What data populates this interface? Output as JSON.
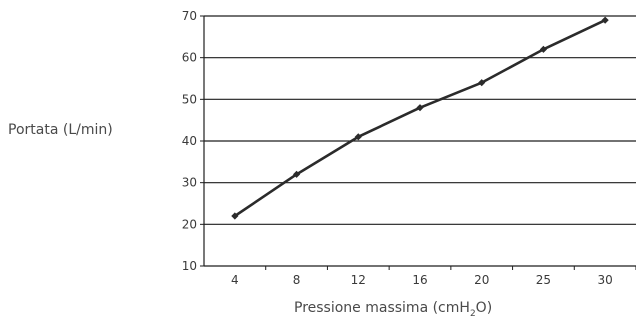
{
  "chart_data": {
    "type": "line",
    "xlabel_parts": {
      "before": "Pressione massima (cmH",
      "subscript": "2",
      "after": "O)"
    },
    "ylabel": "Portata (L/min)",
    "categories": [
      "4",
      "8",
      "12",
      "16",
      "20",
      "25",
      "30"
    ],
    "series": [
      {
        "values": [
          22,
          32,
          41,
          48,
          54,
          62,
          69
        ]
      }
    ],
    "ylim": [
      10,
      70
    ],
    "yticks": [
      10,
      20,
      30,
      40,
      50,
      60,
      70
    ],
    "grid": "horizontal",
    "colors": {
      "line": "#2b2b2b",
      "grid": "#1e1e1e",
      "text": "#3a3a3a"
    }
  }
}
